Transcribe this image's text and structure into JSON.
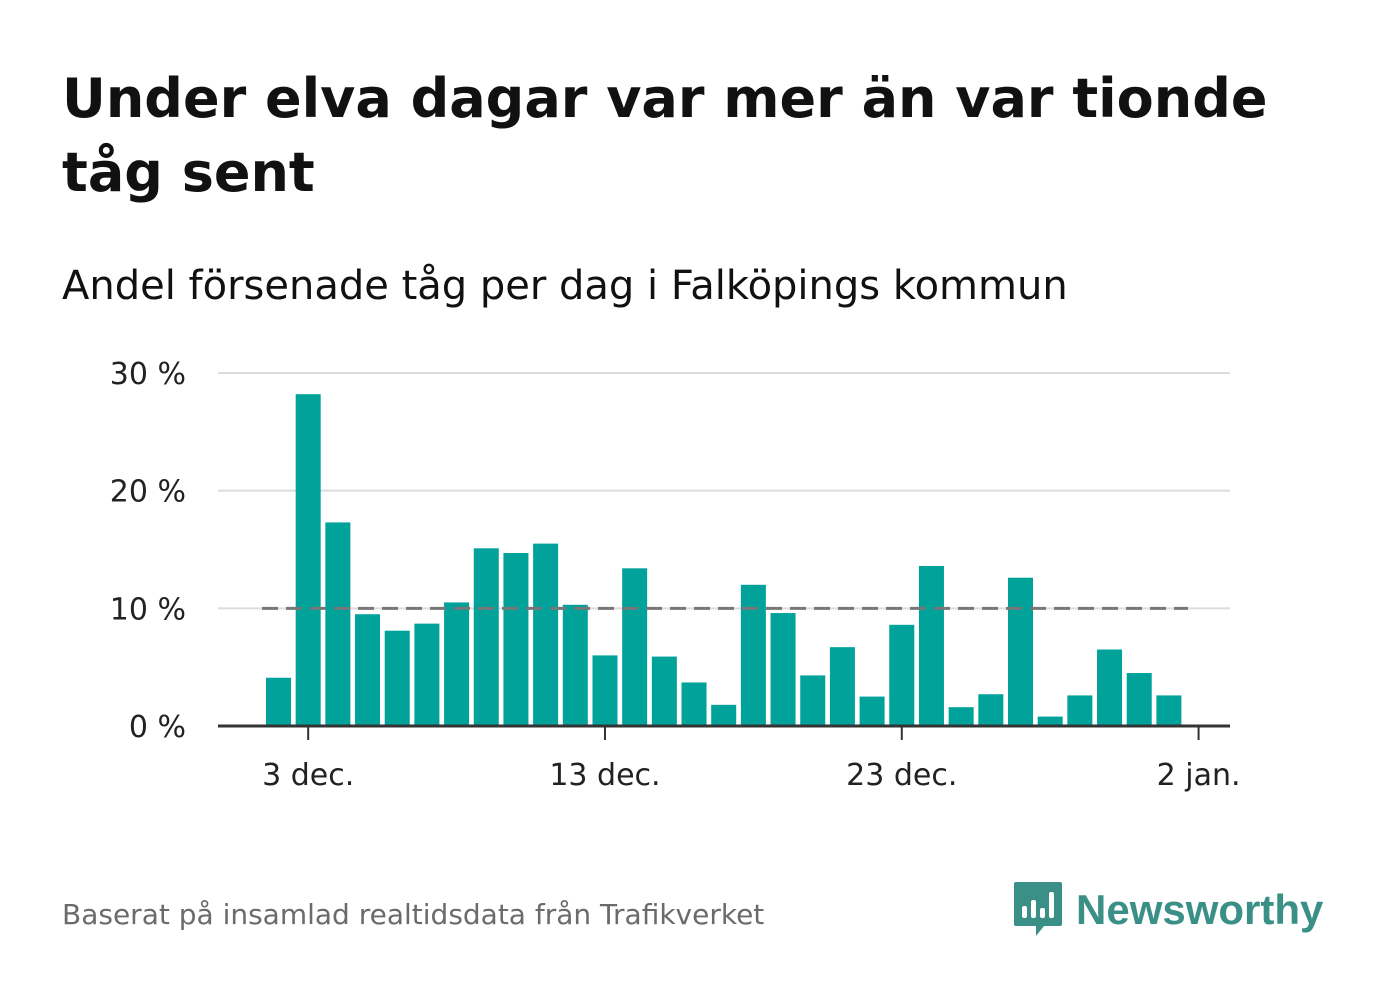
{
  "header": {
    "title": "Under elva dagar var mer än var tionde tåg sent",
    "subtitle": "Andel försenade tåg per dag i Falköpings kommun"
  },
  "footer": {
    "source": "Baserat på insamlad realtidsdata från Trafikverket",
    "brand": "Newsworthy"
  },
  "colors": {
    "bar": "#00a29a",
    "grid": "#dcdcdc",
    "axis": "#333333",
    "reference_line": "#777777",
    "brand": "#3a8f87"
  },
  "chart_data": {
    "type": "bar",
    "x": [
      "2 dec.",
      "3 dec.",
      "4 dec.",
      "5 dec.",
      "6 dec.",
      "7 dec.",
      "8 dec.",
      "9 dec.",
      "10 dec.",
      "11 dec.",
      "12 dec.",
      "13 dec.",
      "14 dec.",
      "15 dec.",
      "16 dec.",
      "17 dec.",
      "18 dec.",
      "19 dec.",
      "20 dec.",
      "21 dec.",
      "22 dec.",
      "23 dec.",
      "24 dec.",
      "25 dec.",
      "26 dec.",
      "27 dec.",
      "28 dec.",
      "29 dec.",
      "30 dec.",
      "31 dec.",
      "1 jan."
    ],
    "values": [
      4.1,
      28.2,
      17.3,
      9.5,
      8.1,
      8.7,
      10.5,
      15.1,
      14.7,
      15.5,
      10.3,
      6.0,
      13.4,
      5.9,
      3.7,
      1.8,
      12.0,
      9.6,
      4.3,
      6.7,
      2.5,
      8.6,
      13.6,
      1.6,
      2.7,
      12.6,
      0.8,
      2.6,
      6.5,
      4.5,
      2.6
    ],
    "x_ticks": [
      "3 dec.",
      "13 dec.",
      "23 dec.",
      "2 jan."
    ],
    "y_ticks": [
      "0 %",
      "10 %",
      "20 %",
      "30 %"
    ],
    "ylim": [
      0,
      30
    ],
    "reference_line": {
      "value": 10,
      "style": "dashed"
    },
    "grid": true,
    "legend": "none"
  }
}
